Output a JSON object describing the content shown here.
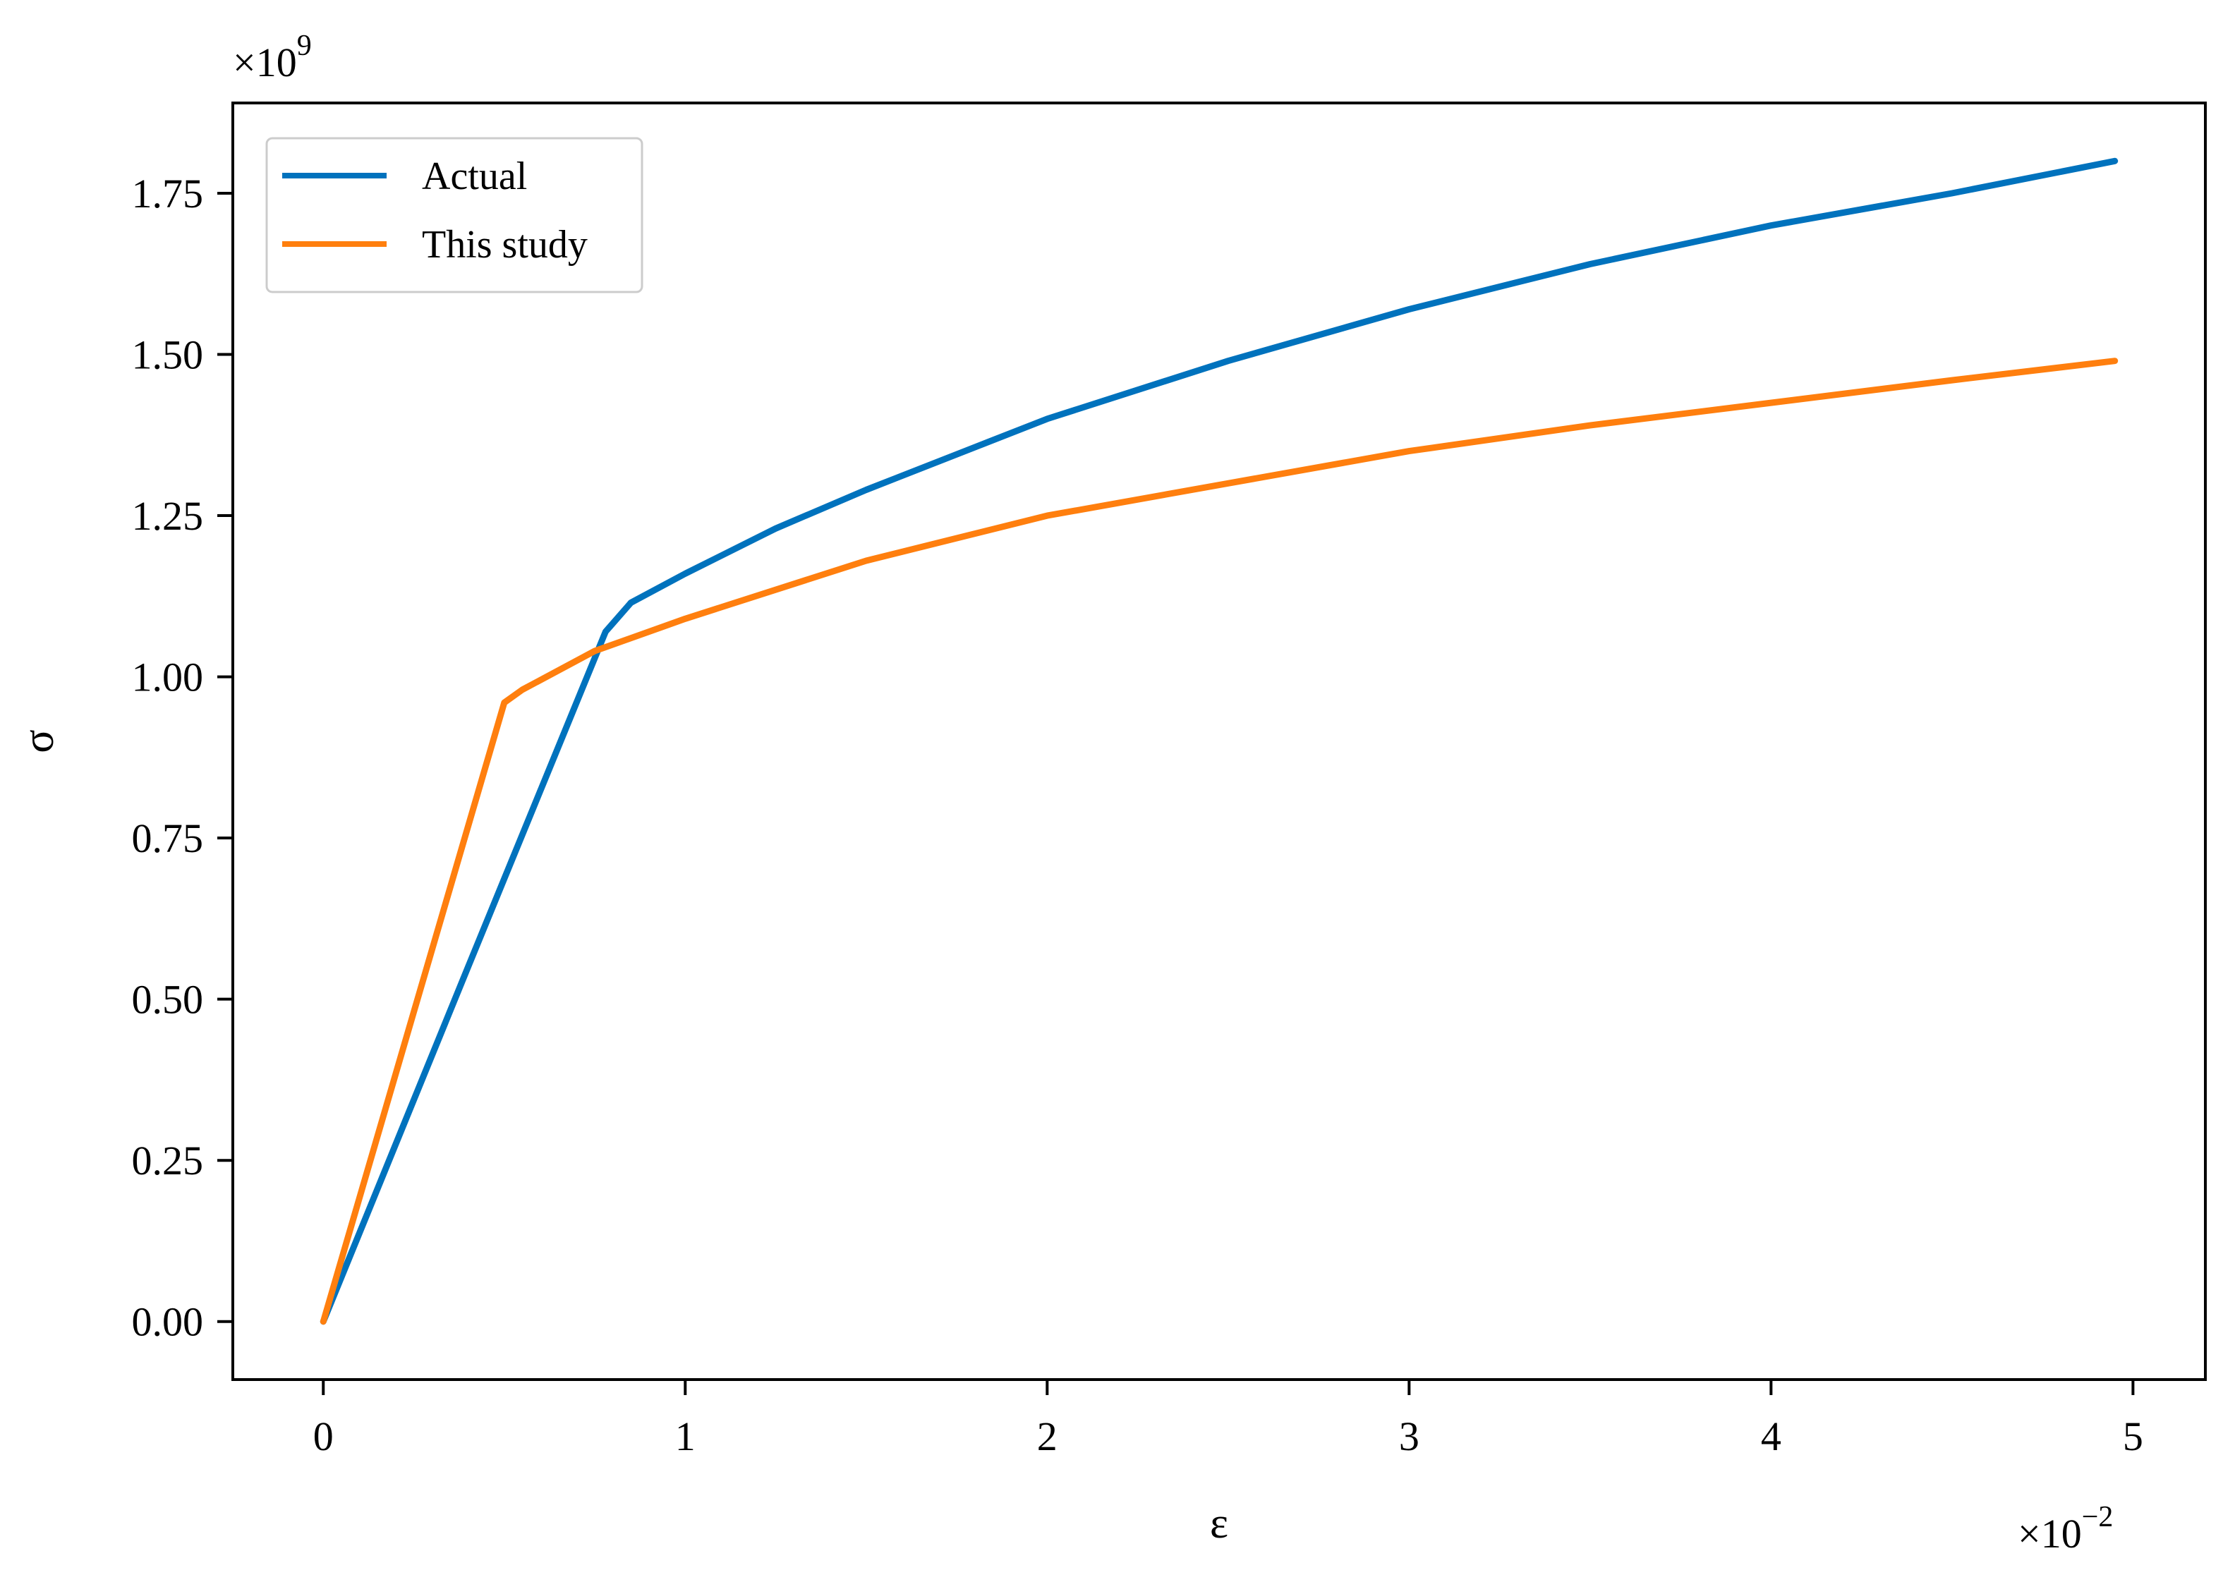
{
  "chart_data": {
    "type": "line",
    "xlabel": "ε",
    "ylabel": "σ",
    "x_offset": {
      "base": "×10",
      "exp": "−2"
    },
    "y_offset": {
      "base": "×10",
      "exp": "9"
    },
    "xlim": [
      -0.25,
      5.2
    ],
    "ylim": [
      -0.09,
      1.89
    ],
    "x_ticks": [
      {
        "value": 0,
        "label": "0"
      },
      {
        "value": 1,
        "label": "1"
      },
      {
        "value": 2,
        "label": "2"
      },
      {
        "value": 3,
        "label": "3"
      },
      {
        "value": 4,
        "label": "4"
      },
      {
        "value": 5,
        "label": "5"
      }
    ],
    "y_ticks": [
      {
        "value": 0,
        "label": "0.00"
      },
      {
        "value": 0.25,
        "label": "0.25"
      },
      {
        "value": 0.5,
        "label": "0.50"
      },
      {
        "value": 0.75,
        "label": "0.75"
      },
      {
        "value": 1.0,
        "label": "1.00"
      },
      {
        "value": 1.25,
        "label": "1.25"
      },
      {
        "value": 1.5,
        "label": "1.50"
      },
      {
        "value": 1.75,
        "label": "1.75"
      }
    ],
    "grid": false,
    "legend": {
      "position": "top-left"
    },
    "series": [
      {
        "name": "Actual",
        "color": "#0072bd",
        "points": [
          [
            0,
            0
          ],
          [
            0.4,
            0.55
          ],
          [
            0.78,
            1.07
          ],
          [
            0.85,
            1.115
          ],
          [
            1.0,
            1.16
          ],
          [
            1.25,
            1.23
          ],
          [
            1.5,
            1.29
          ],
          [
            2.0,
            1.4
          ],
          [
            2.5,
            1.49
          ],
          [
            3.0,
            1.57
          ],
          [
            3.5,
            1.64
          ],
          [
            4.0,
            1.7
          ],
          [
            4.5,
            1.75
          ],
          [
            4.95,
            1.8
          ]
        ]
      },
      {
        "name": "This study",
        "color": "#ff7f0e",
        "points": [
          [
            0,
            0
          ],
          [
            0.25,
            0.48
          ],
          [
            0.5,
            0.96
          ],
          [
            0.55,
            0.98
          ],
          [
            0.75,
            1.04
          ],
          [
            1.0,
            1.09
          ],
          [
            1.5,
            1.18
          ],
          [
            2.0,
            1.25
          ],
          [
            2.5,
            1.3
          ],
          [
            3.0,
            1.35
          ],
          [
            3.5,
            1.39
          ],
          [
            4.0,
            1.425
          ],
          [
            4.5,
            1.46
          ],
          [
            4.95,
            1.49
          ]
        ]
      }
    ]
  }
}
